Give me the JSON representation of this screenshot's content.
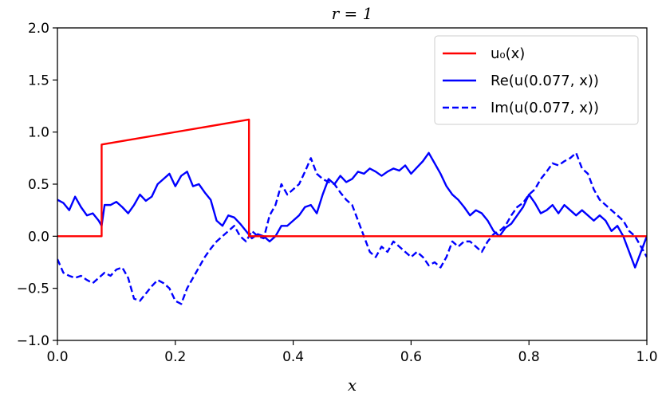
{
  "chart_data": {
    "type": "line",
    "title": "r = 1",
    "xlabel": "x",
    "ylabel": "",
    "xlim": [
      0.0,
      1.0
    ],
    "ylim": [
      -1.0,
      2.0
    ],
    "xticks": [
      "0.0",
      "0.2",
      "0.4",
      "0.6",
      "0.8",
      "1.0"
    ],
    "yticks": [
      "−1.0",
      "−0.5",
      "0.0",
      "0.5",
      "1.0",
      "1.5",
      "2.0"
    ],
    "legend_position": "top-right",
    "grid": false,
    "series": [
      {
        "name": "u₀(x)",
        "color": "#ff0000",
        "style": "solid",
        "x": [
          0.0,
          0.075,
          0.075,
          0.325,
          0.325,
          1.0
        ],
        "y": [
          0.0,
          0.0,
          0.88,
          1.12,
          0.0,
          0.0
        ]
      },
      {
        "name": "Re(u(0.077, x))",
        "color": "#0000ff",
        "style": "solid",
        "x": [
          0.0,
          0.01,
          0.02,
          0.03,
          0.04,
          0.05,
          0.06,
          0.07,
          0.075,
          0.08,
          0.09,
          0.1,
          0.11,
          0.12,
          0.13,
          0.14,
          0.15,
          0.16,
          0.17,
          0.18,
          0.19,
          0.2,
          0.21,
          0.22,
          0.23,
          0.24,
          0.25,
          0.26,
          0.27,
          0.28,
          0.29,
          0.3,
          0.31,
          0.32,
          0.33,
          0.34,
          0.35,
          0.36,
          0.37,
          0.38,
          0.39,
          0.4,
          0.41,
          0.42,
          0.43,
          0.44,
          0.45,
          0.46,
          0.47,
          0.48,
          0.49,
          0.5,
          0.51,
          0.52,
          0.53,
          0.54,
          0.55,
          0.56,
          0.57,
          0.58,
          0.59,
          0.6,
          0.61,
          0.62,
          0.63,
          0.64,
          0.65,
          0.66,
          0.67,
          0.68,
          0.69,
          0.7,
          0.71,
          0.72,
          0.73,
          0.74,
          0.75,
          0.76,
          0.77,
          0.78,
          0.79,
          0.8,
          0.81,
          0.82,
          0.83,
          0.84,
          0.85,
          0.86,
          0.87,
          0.88,
          0.89,
          0.9,
          0.91,
          0.92,
          0.93,
          0.94,
          0.95,
          0.96,
          0.97,
          0.98,
          0.99,
          1.0
        ],
        "y": [
          0.35,
          0.32,
          0.25,
          0.38,
          0.28,
          0.2,
          0.22,
          0.15,
          0.1,
          0.3,
          0.3,
          0.33,
          0.28,
          0.22,
          0.3,
          0.4,
          0.34,
          0.38,
          0.5,
          0.55,
          0.6,
          0.48,
          0.58,
          0.62,
          0.48,
          0.5,
          0.42,
          0.35,
          0.15,
          0.1,
          0.2,
          0.18,
          0.12,
          0.05,
          -0.02,
          0.02,
          0.0,
          -0.05,
          0.0,
          0.1,
          0.1,
          0.15,
          0.2,
          0.28,
          0.3,
          0.22,
          0.4,
          0.55,
          0.5,
          0.58,
          0.52,
          0.55,
          0.62,
          0.6,
          0.65,
          0.62,
          0.58,
          0.62,
          0.65,
          0.63,
          0.68,
          0.6,
          0.66,
          0.72,
          0.8,
          0.7,
          0.6,
          0.48,
          0.4,
          0.35,
          0.28,
          0.2,
          0.25,
          0.22,
          0.15,
          0.05,
          0.0,
          0.08,
          0.12,
          0.2,
          0.28,
          0.4,
          0.32,
          0.22,
          0.25,
          0.3,
          0.22,
          0.3,
          0.25,
          0.2,
          0.25,
          0.2,
          0.15,
          0.2,
          0.15,
          0.05,
          0.1,
          0.0,
          -0.15,
          -0.3,
          -0.15,
          0.0
        ]
      },
      {
        "name": "Im(u(0.077, x))",
        "color": "#0000ff",
        "style": "dashed",
        "x": [
          0.0,
          0.01,
          0.02,
          0.03,
          0.04,
          0.05,
          0.06,
          0.07,
          0.08,
          0.09,
          0.1,
          0.11,
          0.12,
          0.13,
          0.14,
          0.15,
          0.16,
          0.17,
          0.18,
          0.19,
          0.2,
          0.21,
          0.22,
          0.23,
          0.24,
          0.25,
          0.26,
          0.27,
          0.28,
          0.29,
          0.3,
          0.31,
          0.32,
          0.33,
          0.34,
          0.35,
          0.36,
          0.37,
          0.38,
          0.39,
          0.4,
          0.41,
          0.42,
          0.43,
          0.44,
          0.45,
          0.46,
          0.47,
          0.48,
          0.49,
          0.5,
          0.51,
          0.52,
          0.53,
          0.54,
          0.55,
          0.56,
          0.57,
          0.58,
          0.59,
          0.6,
          0.61,
          0.62,
          0.63,
          0.64,
          0.65,
          0.66,
          0.67,
          0.68,
          0.69,
          0.7,
          0.71,
          0.72,
          0.73,
          0.74,
          0.75,
          0.76,
          0.77,
          0.78,
          0.79,
          0.8,
          0.81,
          0.82,
          0.83,
          0.84,
          0.85,
          0.86,
          0.87,
          0.88,
          0.89,
          0.9,
          0.91,
          0.92,
          0.93,
          0.94,
          0.95,
          0.96,
          0.97,
          0.98,
          0.99,
          1.0
        ],
        "y": [
          -0.22,
          -0.35,
          -0.38,
          -0.4,
          -0.38,
          -0.42,
          -0.45,
          -0.4,
          -0.35,
          -0.38,
          -0.32,
          -0.3,
          -0.4,
          -0.6,
          -0.62,
          -0.55,
          -0.48,
          -0.42,
          -0.45,
          -0.5,
          -0.62,
          -0.65,
          -0.5,
          -0.4,
          -0.3,
          -0.2,
          -0.12,
          -0.05,
          0.0,
          0.05,
          0.1,
          0.0,
          -0.05,
          0.05,
          0.0,
          -0.02,
          0.2,
          0.3,
          0.5,
          0.4,
          0.45,
          0.5,
          0.62,
          0.75,
          0.6,
          0.55,
          0.52,
          0.5,
          0.42,
          0.35,
          0.3,
          0.15,
          0.0,
          -0.15,
          -0.2,
          -0.1,
          -0.15,
          -0.05,
          -0.1,
          -0.15,
          -0.2,
          -0.15,
          -0.2,
          -0.28,
          -0.25,
          -0.3,
          -0.2,
          -0.05,
          -0.1,
          -0.05,
          -0.05,
          -0.1,
          -0.15,
          -0.05,
          0.02,
          0.05,
          0.1,
          0.2,
          0.28,
          0.32,
          0.4,
          0.45,
          0.55,
          0.62,
          0.7,
          0.68,
          0.72,
          0.75,
          0.8,
          0.65,
          0.6,
          0.45,
          0.35,
          0.3,
          0.25,
          0.2,
          0.15,
          0.05,
          0.0,
          -0.1,
          -0.2
        ]
      }
    ]
  }
}
